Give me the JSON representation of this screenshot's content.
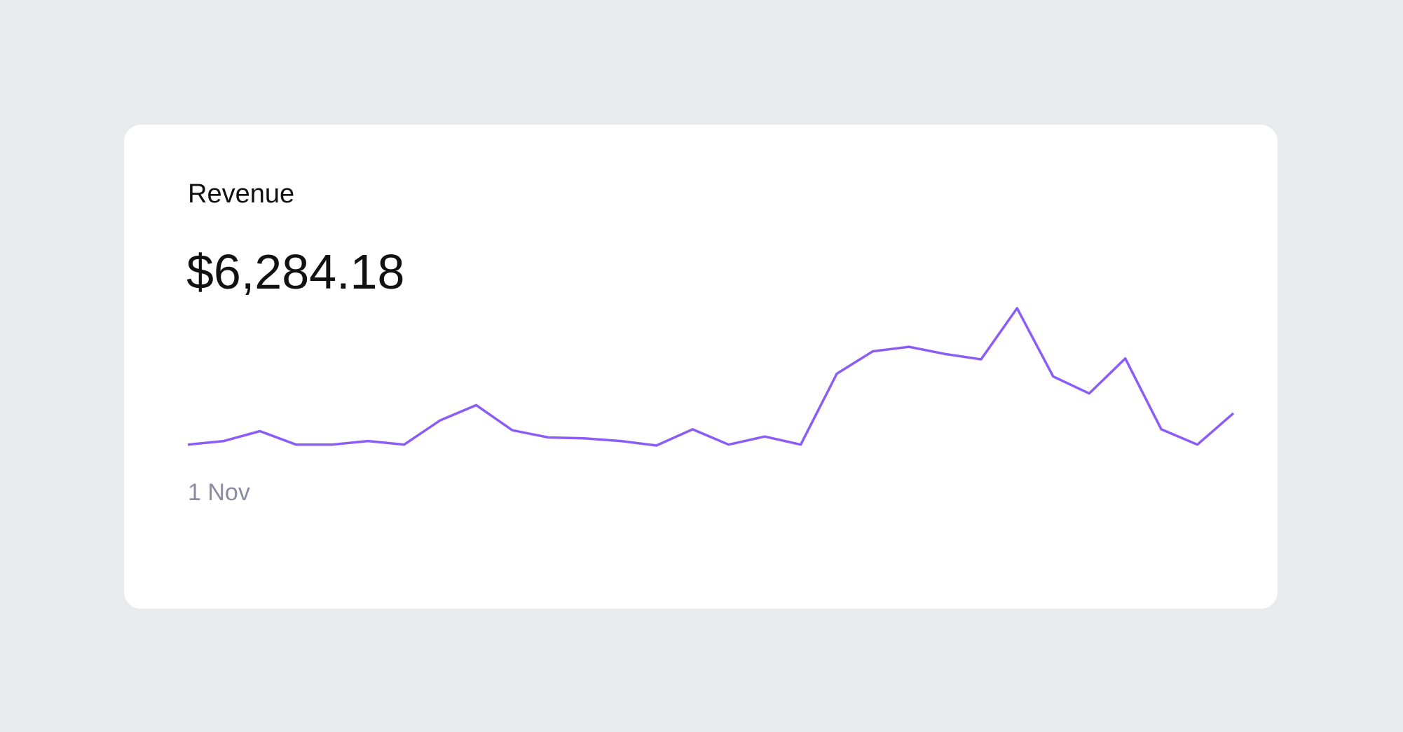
{
  "chart_data": {
    "type": "line",
    "title": "Revenue",
    "headline": "$6,284.18",
    "categories": [
      "1 Nov",
      null,
      null,
      null,
      null,
      null,
      null,
      null,
      null,
      null,
      null,
      null,
      null,
      null,
      null,
      null,
      null,
      null,
      null,
      null,
      null,
      null,
      null,
      null,
      null,
      null,
      null,
      null,
      null,
      null
    ],
    "values": [
      3,
      7,
      18,
      3,
      3,
      7,
      3,
      30,
      47,
      19,
      11,
      10,
      7,
      2,
      20,
      3,
      12,
      3,
      82,
      107,
      112,
      104,
      98,
      155,
      79,
      60,
      99,
      20,
      3,
      38
    ],
    "color": "#8b5cf6"
  }
}
